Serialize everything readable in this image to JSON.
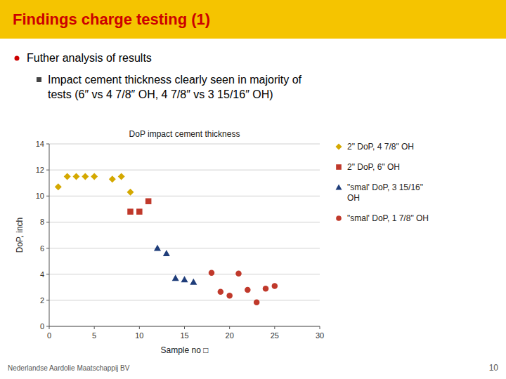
{
  "header": {
    "title": "Findings charge testing (1)",
    "color": "#cc0000",
    "background": "#f5c400"
  },
  "bullets": [
    "Futher analysis of results",
    "Impact cement thickness clearly seen in majority of\ntests (6″ vs 4 7/8″ OH, 4 7/8″ vs 3 15/16″ OH)"
  ],
  "footer": [
    "Nederlandse Aardolie Maatschappij BV",
    "10"
  ],
  "chart_data": {
    "type": "scatter",
    "title": "DoP impact cement thickness",
    "x_label": "Sample no □",
    "y_label": "DoP, inch",
    "xlim": [
      0,
      30
    ],
    "ylim": [
      0,
      14
    ],
    "xticks": [
      0,
      5,
      10,
      15,
      20,
      25,
      30
    ],
    "yticks": [
      0,
      2,
      4,
      6,
      8,
      10,
      12,
      14
    ],
    "grid": true,
    "legend": "right",
    "series": [
      {
        "name": "2\" DoP, 4 7/8\" OH",
        "color": "#d4a800",
        "marker": "diamond",
        "x": [
          1,
          2,
          3,
          4,
          5,
          7,
          8,
          9
        ],
        "values": [
          10.7,
          11.5,
          11.5,
          11.5,
          11.5,
          11.3,
          11.5,
          10.3
        ]
      },
      {
        "name": "2\" DoP, 6\" OH",
        "color": "#c0392b",
        "marker": "square",
        "x": [
          9,
          10,
          11
        ],
        "values": [
          8.8,
          8.8,
          9.6
        ]
      },
      {
        "name": "\"smal' DoP, 3 15/16\"\nOH",
        "color": "#1f3d7a",
        "marker": "triangle",
        "x": [
          12,
          13,
          14,
          15,
          16
        ],
        "values": [
          6.0,
          5.6,
          3.7,
          3.6,
          3.4
        ]
      },
      {
        "name": "\"smal' DoP, 1 7/8\" OH",
        "color": "#c0392b",
        "marker": "circle",
        "x": [
          18,
          19,
          20,
          21,
          22,
          23,
          24,
          25
        ],
        "values": [
          4.1,
          2.65,
          2.35,
          4.05,
          2.8,
          1.85,
          2.9,
          3.1
        ]
      }
    ]
  }
}
